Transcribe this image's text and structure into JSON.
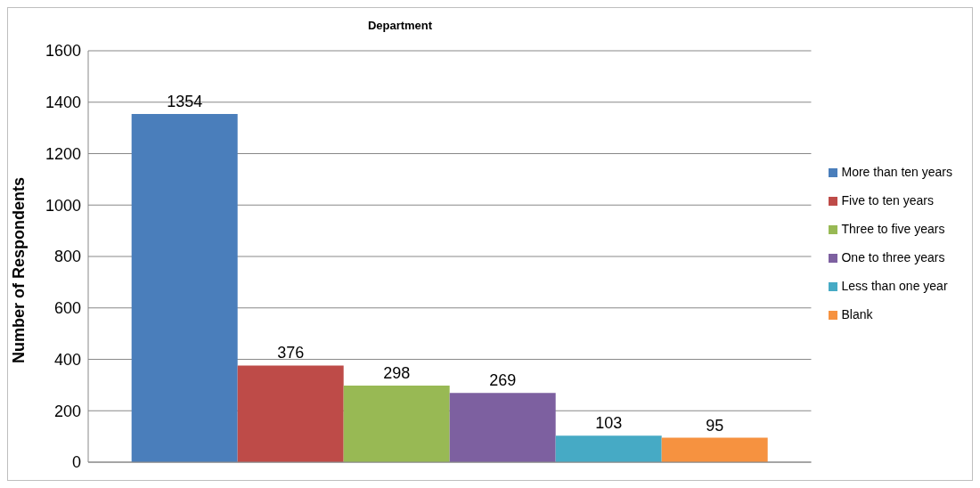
{
  "chart_data": {
    "type": "bar",
    "title": "Department",
    "ylabel": "Number of Respondents",
    "categories": [
      null
    ],
    "series": [
      {
        "name": "More than ten years",
        "color": "#4a7ebb",
        "values": [
          1354
        ]
      },
      {
        "name": "Five to ten years",
        "color": "#be4b48",
        "values": [
          376
        ]
      },
      {
        "name": "Three to five years",
        "color": "#98b954",
        "values": [
          298
        ]
      },
      {
        "name": "One to three years",
        "color": "#7d60a0",
        "values": [
          269
        ]
      },
      {
        "name": "Less than one year",
        "color": "#46aac5",
        "values": [
          103
        ]
      },
      {
        "name": "Blank",
        "color": "#f69240",
        "values": [
          95
        ]
      }
    ],
    "ylim": [
      0,
      1600
    ],
    "yticks": [
      0,
      200,
      400,
      600,
      800,
      1000,
      1200,
      1400,
      1600
    ],
    "grid": "y",
    "legend": "right",
    "data_labels": true
  }
}
